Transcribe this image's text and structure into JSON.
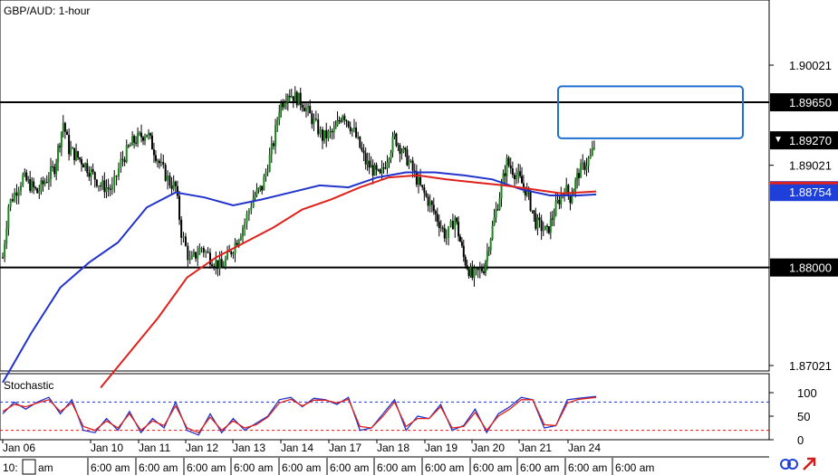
{
  "chart_data": [
    {
      "type": "candlestick",
      "title": "GBP/AUD: 1-hour",
      "ylim": [
        1.868,
        1.9065
      ],
      "price_ticks": [
        1.90021,
        1.89021,
        1.88,
        1.87021
      ],
      "price_tick_labels": [
        "1.90021",
        "1.89021",
        "1.88000",
        "1.87021"
      ],
      "horizontal_levels": [
        {
          "value": 1.8965,
          "label": "1.89650"
        },
        {
          "value": 1.88,
          "label": "1.88000"
        }
      ],
      "current_price": {
        "value": 1.8927,
        "label": "1.89270"
      },
      "ma_marker": {
        "value": 1.88754,
        "label": "1.88754"
      },
      "target_box": {
        "price_top": 1.8981,
        "price_bottom": 1.8929
      },
      "series": [
        {
          "kind": "ohlc-close-approx",
          "points": [
            [
              0,
              1.881
            ],
            [
              0.1,
              1.8862
            ],
            [
              0.35,
              1.889
            ],
            [
              0.6,
              1.8875
            ],
            [
              0.9,
              1.89
            ],
            [
              1.05,
              1.8945
            ],
            [
              1.15,
              1.8918
            ],
            [
              1.4,
              1.8905
            ],
            [
              1.7,
              1.8882
            ],
            [
              1.9,
              1.8878
            ],
            [
              2.05,
              1.8905
            ],
            [
              2.25,
              1.8925
            ],
            [
              2.5,
              1.8935
            ],
            [
              2.75,
              1.89
            ],
            [
              2.9,
              1.8885
            ],
            [
              3.0,
              1.888
            ],
            [
              3.1,
              1.8835
            ],
            [
              3.25,
              1.8805
            ],
            [
              3.45,
              1.882
            ],
            [
              3.6,
              1.881
            ],
            [
              3.8,
              1.88
            ],
            [
              4.0,
              1.882
            ],
            [
              4.2,
              1.8845
            ],
            [
              4.35,
              1.887
            ],
            [
              4.5,
              1.888
            ],
            [
              4.7,
              1.8925
            ],
            [
              4.8,
              1.896
            ],
            [
              4.95,
              1.8975
            ],
            [
              5.2,
              1.8965
            ],
            [
              5.4,
              1.8945
            ],
            [
              5.55,
              1.893
            ],
            [
              5.75,
              1.8935
            ],
            [
              5.9,
              1.8955
            ],
            [
              6.1,
              1.8935
            ],
            [
              6.3,
              1.8905
            ],
            [
              6.55,
              1.889
            ],
            [
              6.8,
              1.893
            ],
            [
              7.05,
              1.8905
            ],
            [
              7.25,
              1.888
            ],
            [
              7.45,
              1.886
            ],
            [
              7.7,
              1.883
            ],
            [
              7.85,
              1.885
            ],
            [
              8.0,
              1.881
            ],
            [
              8.15,
              1.879
            ],
            [
              8.35,
              1.88
            ],
            [
              8.5,
              1.884
            ],
            [
              8.75,
              1.8905
            ],
            [
              8.95,
              1.889
            ],
            [
              9.1,
              1.8875
            ],
            [
              9.25,
              1.8845
            ],
            [
              9.45,
              1.8835
            ],
            [
              9.6,
              1.886
            ],
            [
              9.75,
              1.888
            ],
            [
              9.85,
              1.887
            ],
            [
              10.0,
              1.8895
            ],
            [
              10.2,
              1.891
            ],
            [
              10.3,
              1.8927
            ]
          ]
        },
        {
          "name": "",
          "kind": "moving-average",
          "color": "#2233cc",
          "points": [
            [
              0,
              1.8685
            ],
            [
              0.5,
              1.8735
            ],
            [
              1,
              1.878
            ],
            [
              1.5,
              1.8805
            ],
            [
              2,
              1.8825
            ],
            [
              2.5,
              1.886
            ],
            [
              3.0,
              1.8875
            ],
            [
              3.5,
              1.887
            ],
            [
              4.0,
              1.8862
            ],
            [
              4.5,
              1.8868
            ],
            [
              5.0,
              1.8875
            ],
            [
              5.5,
              1.8882
            ],
            [
              6.0,
              1.888
            ],
            [
              6.5,
              1.889
            ],
            [
              7.0,
              1.8895
            ],
            [
              7.5,
              1.8895
            ],
            [
              8.0,
              1.8892
            ],
            [
              8.5,
              1.8888
            ],
            [
              9.0,
              1.8878
            ],
            [
              9.5,
              1.8872
            ],
            [
              10.0,
              1.8872
            ],
            [
              10.3,
              1.8873
            ]
          ]
        },
        {
          "name": "",
          "kind": "moving-average",
          "color": "#e0201a",
          "points": [
            [
              1.7,
              1.868
            ],
            [
              2.2,
              1.8715
            ],
            [
              2.7,
              1.875
            ],
            [
              3.2,
              1.879
            ],
            [
              3.7,
              1.881
            ],
            [
              4.2,
              1.8825
            ],
            [
              4.7,
              1.884
            ],
            [
              5.2,
              1.8858
            ],
            [
              5.7,
              1.8868
            ],
            [
              6.2,
              1.888
            ],
            [
              6.7,
              1.889
            ],
            [
              7.2,
              1.8892
            ],
            [
              7.7,
              1.8888
            ],
            [
              8.2,
              1.8885
            ],
            [
              8.7,
              1.8882
            ],
            [
              9.2,
              1.8878
            ],
            [
              9.7,
              1.8874
            ],
            [
              10.0,
              1.8875
            ],
            [
              10.3,
              1.8876
            ]
          ]
        }
      ],
      "x_date_labels": [
        "Jan 06",
        "Jan 10",
        "Jan 11",
        "Jan 12",
        "Jan 13",
        "Jan 14",
        "Jan 17",
        "Jan 18",
        "Jan 19",
        "Jan 20",
        "Jan 21",
        "Jan 24"
      ],
      "x_time_labels": [
        "10:",
        "am",
        "6:00 am",
        "6:00 am",
        "6:00 am",
        "6:00 am",
        "6:00 am",
        "6:00 am",
        "6:00 am",
        "6:00 am",
        "6:00 am",
        "6:00 am",
        "6:00 am",
        "6:00 am"
      ]
    },
    {
      "type": "line",
      "title": "Stochastic",
      "ylim": [
        0,
        100
      ],
      "y_ticks": [
        100,
        50,
        0
      ],
      "y_tick_labels": [
        "100",
        "50",
        "0"
      ],
      "levels": [
        80,
        20
      ],
      "series": [
        {
          "kind": "stochastic-k",
          "color": "#2233cc",
          "points": [
            [
              0,
              55
            ],
            [
              0.2,
              80
            ],
            [
              0.4,
              65
            ],
            [
              0.6,
              80
            ],
            [
              0.8,
              90
            ],
            [
              1.0,
              55
            ],
            [
              1.2,
              85
            ],
            [
              1.4,
              20
            ],
            [
              1.6,
              15
            ],
            [
              1.8,
              45
            ],
            [
              2.0,
              20
            ],
            [
              2.2,
              60
            ],
            [
              2.4,
              15
            ],
            [
              2.6,
              45
            ],
            [
              2.8,
              25
            ],
            [
              3.0,
              80
            ],
            [
              3.2,
              20
            ],
            [
              3.4,
              10
            ],
            [
              3.6,
              55
            ],
            [
              3.8,
              15
            ],
            [
              4.0,
              45
            ],
            [
              4.2,
              20
            ],
            [
              4.4,
              35
            ],
            [
              4.6,
              50
            ],
            [
              4.8,
              85
            ],
            [
              5.0,
              90
            ],
            [
              5.2,
              70
            ],
            [
              5.4,
              88
            ],
            [
              5.6,
              85
            ],
            [
              5.8,
              75
            ],
            [
              6.0,
              90
            ],
            [
              6.2,
              20
            ],
            [
              6.4,
              25
            ],
            [
              6.6,
              55
            ],
            [
              6.8,
              85
            ],
            [
              7.0,
              20
            ],
            [
              7.2,
              50
            ],
            [
              7.4,
              45
            ],
            [
              7.6,
              75
            ],
            [
              7.8,
              20
            ],
            [
              8.0,
              30
            ],
            [
              8.2,
              65
            ],
            [
              8.4,
              15
            ],
            [
              8.6,
              55
            ],
            [
              8.8,
              70
            ],
            [
              9.0,
              90
            ],
            [
              9.2,
              85
            ],
            [
              9.4,
              25
            ],
            [
              9.6,
              30
            ],
            [
              9.8,
              85
            ],
            [
              10.0,
              88
            ],
            [
              10.3,
              92
            ]
          ]
        },
        {
          "kind": "stochastic-d",
          "color": "#e0201a",
          "points": [
            [
              0,
              60
            ],
            [
              0.2,
              75
            ],
            [
              0.4,
              70
            ],
            [
              0.6,
              78
            ],
            [
              0.8,
              85
            ],
            [
              1.0,
              60
            ],
            [
              1.2,
              78
            ],
            [
              1.4,
              28
            ],
            [
              1.6,
              20
            ],
            [
              1.8,
              40
            ],
            [
              2.0,
              25
            ],
            [
              2.2,
              55
            ],
            [
              2.4,
              20
            ],
            [
              2.6,
              40
            ],
            [
              2.8,
              30
            ],
            [
              3.0,
              72
            ],
            [
              3.2,
              25
            ],
            [
              3.4,
              15
            ],
            [
              3.6,
              48
            ],
            [
              3.8,
              20
            ],
            [
              4.0,
              40
            ],
            [
              4.2,
              25
            ],
            [
              4.4,
              32
            ],
            [
              4.6,
              48
            ],
            [
              4.8,
              78
            ],
            [
              5.0,
              86
            ],
            [
              5.2,
              72
            ],
            [
              5.4,
              84
            ],
            [
              5.6,
              84
            ],
            [
              5.8,
              78
            ],
            [
              6.0,
              86
            ],
            [
              6.2,
              28
            ],
            [
              6.4,
              25
            ],
            [
              6.6,
              50
            ],
            [
              6.8,
              80
            ],
            [
              7.0,
              28
            ],
            [
              7.2,
              45
            ],
            [
              7.4,
              45
            ],
            [
              7.6,
              70
            ],
            [
              7.8,
              25
            ],
            [
              8.0,
              28
            ],
            [
              8.2,
              58
            ],
            [
              8.4,
              20
            ],
            [
              8.6,
              50
            ],
            [
              8.8,
              65
            ],
            [
              9.0,
              85
            ],
            [
              9.2,
              85
            ],
            [
              9.4,
              32
            ],
            [
              9.6,
              30
            ],
            [
              9.8,
              78
            ],
            [
              10.0,
              86
            ],
            [
              10.3,
              90
            ]
          ]
        }
      ]
    }
  ],
  "colors": {
    "grid": "#000000",
    "blue_ma": "#2233cc",
    "red_ma": "#e0201a",
    "candle_up": "#1a8a1a",
    "candle_down": "#000000",
    "box": "#1e6fcf",
    "ma_marker_bg": "#1e40d8",
    "dotted_blue": "#2233cc",
    "dotted_red": "#d41a1a"
  },
  "icons": [
    "sync-icon",
    "arrow-icon"
  ]
}
